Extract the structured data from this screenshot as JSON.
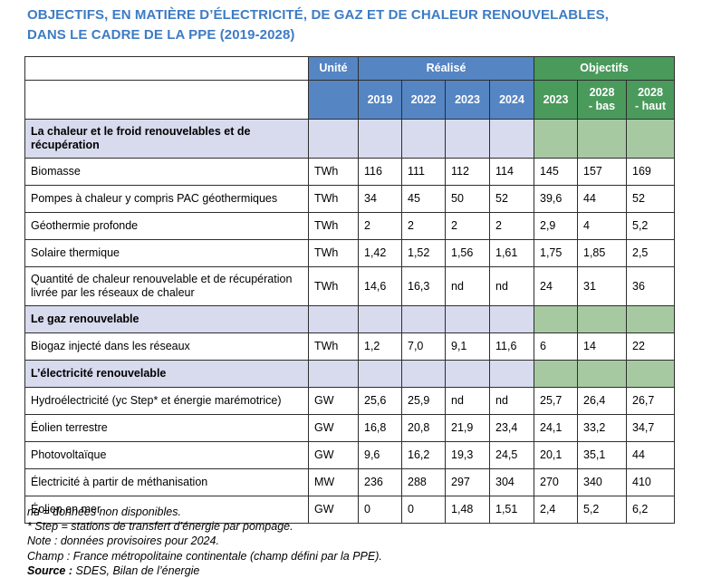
{
  "title": {
    "line1": "OBJECTIFS, EN MATIÈRE D’ÉLECTRICITÉ, DE GAZ ET DE CHALEUR RENOUVELABLES,",
    "line2": "DANS LE CADRE DE LA PPE (2019-2028)"
  },
  "table": {
    "header": {
      "unit": "Unité",
      "realized": "Réalisé",
      "objectives": "Objectifs",
      "realized_years": [
        "2019",
        "2022",
        "2023",
        "2024"
      ],
      "objective_cols": [
        "2023",
        "2028\n- bas",
        "2028\n- haut"
      ]
    },
    "sections": [
      {
        "title": "La chaleur et le froid renouvelables et de récupération",
        "rows": [
          {
            "label": "Biomasse",
            "unit": "TWh",
            "values": [
              "116",
              "111",
              "112",
              "114",
              "145",
              "157",
              "169"
            ]
          },
          {
            "label": "Pompes à chaleur y compris PAC géothermiques",
            "unit": "TWh",
            "values": [
              "34",
              "45",
              "50",
              "52",
              "39,6",
              "44",
              "52"
            ]
          },
          {
            "label": "Géothermie profonde",
            "unit": "TWh",
            "values": [
              "2",
              "2",
              "2",
              "2",
              "2,9",
              "4",
              "5,2"
            ]
          },
          {
            "label": "Solaire thermique",
            "unit": "TWh",
            "values": [
              "1,42",
              "1,52",
              "1,56",
              "1,61",
              "1,75",
              "1,85",
              "2,5"
            ]
          },
          {
            "label": "Quantité de chaleur renouvelable et de récupération livrée par les réseaux de chaleur",
            "unit": "TWh",
            "values": [
              "14,6",
              "16,3",
              "nd",
              "nd",
              "24",
              "31",
              "36"
            ]
          }
        ]
      },
      {
        "title": "Le gaz renouvelable",
        "rows": [
          {
            "label": "Biogaz injecté dans les réseaux",
            "unit": "TWh",
            "values": [
              "1,2",
              "7,0",
              "9,1",
              "11,6",
              "6",
              "14",
              "22"
            ]
          }
        ]
      },
      {
        "title": "L’électricité renouvelable",
        "rows": [
          {
            "label": "Hydroélectricité (yc Step* et énergie marémotrice)",
            "unit": "GW",
            "values": [
              "25,6",
              "25,9",
              "nd",
              "nd",
              "25,7",
              "26,4",
              "26,7"
            ]
          },
          {
            "label": "Éolien terrestre",
            "unit": "GW",
            "values": [
              "16,8",
              "20,8",
              "21,9",
              "23,4",
              "24,1",
              "33,2",
              "34,7"
            ]
          },
          {
            "label": "Photovoltaïque",
            "unit": "GW",
            "values": [
              "9,6",
              "16,2",
              "19,3",
              "24,5",
              "20,1",
              "35,1",
              "44"
            ]
          },
          {
            "label": "Électricité à partir de méthanisation",
            "unit": "MW",
            "values": [
              "236",
              "288",
              "297",
              "304",
              "270",
              "340",
              "410"
            ]
          },
          {
            "label": "Éolien en mer",
            "unit": "GW",
            "values": [
              "0",
              "0",
              "1,48",
              "1,51",
              "2,4",
              "5,2",
              "6,2"
            ]
          }
        ]
      }
    ]
  },
  "notes": [
    "nd = données non disponibles.",
    "* Step = stations de transfert d’énergie par pompage.",
    "Note : données provisoires pour 2024.",
    "Champ : France métropolitaine continentale (champ défini par la PPE)."
  ],
  "source": {
    "label": "Source :",
    "text": " SDES, Bilan de l’énergie"
  },
  "colors": {
    "title_blue": "#3d7cc4",
    "header_blue": "#5585c3",
    "header_green": "#4a9a5c",
    "section_lavender": "#d8dbee",
    "section_light_green": "#a7c9a2",
    "border": "#2e2e2e"
  }
}
